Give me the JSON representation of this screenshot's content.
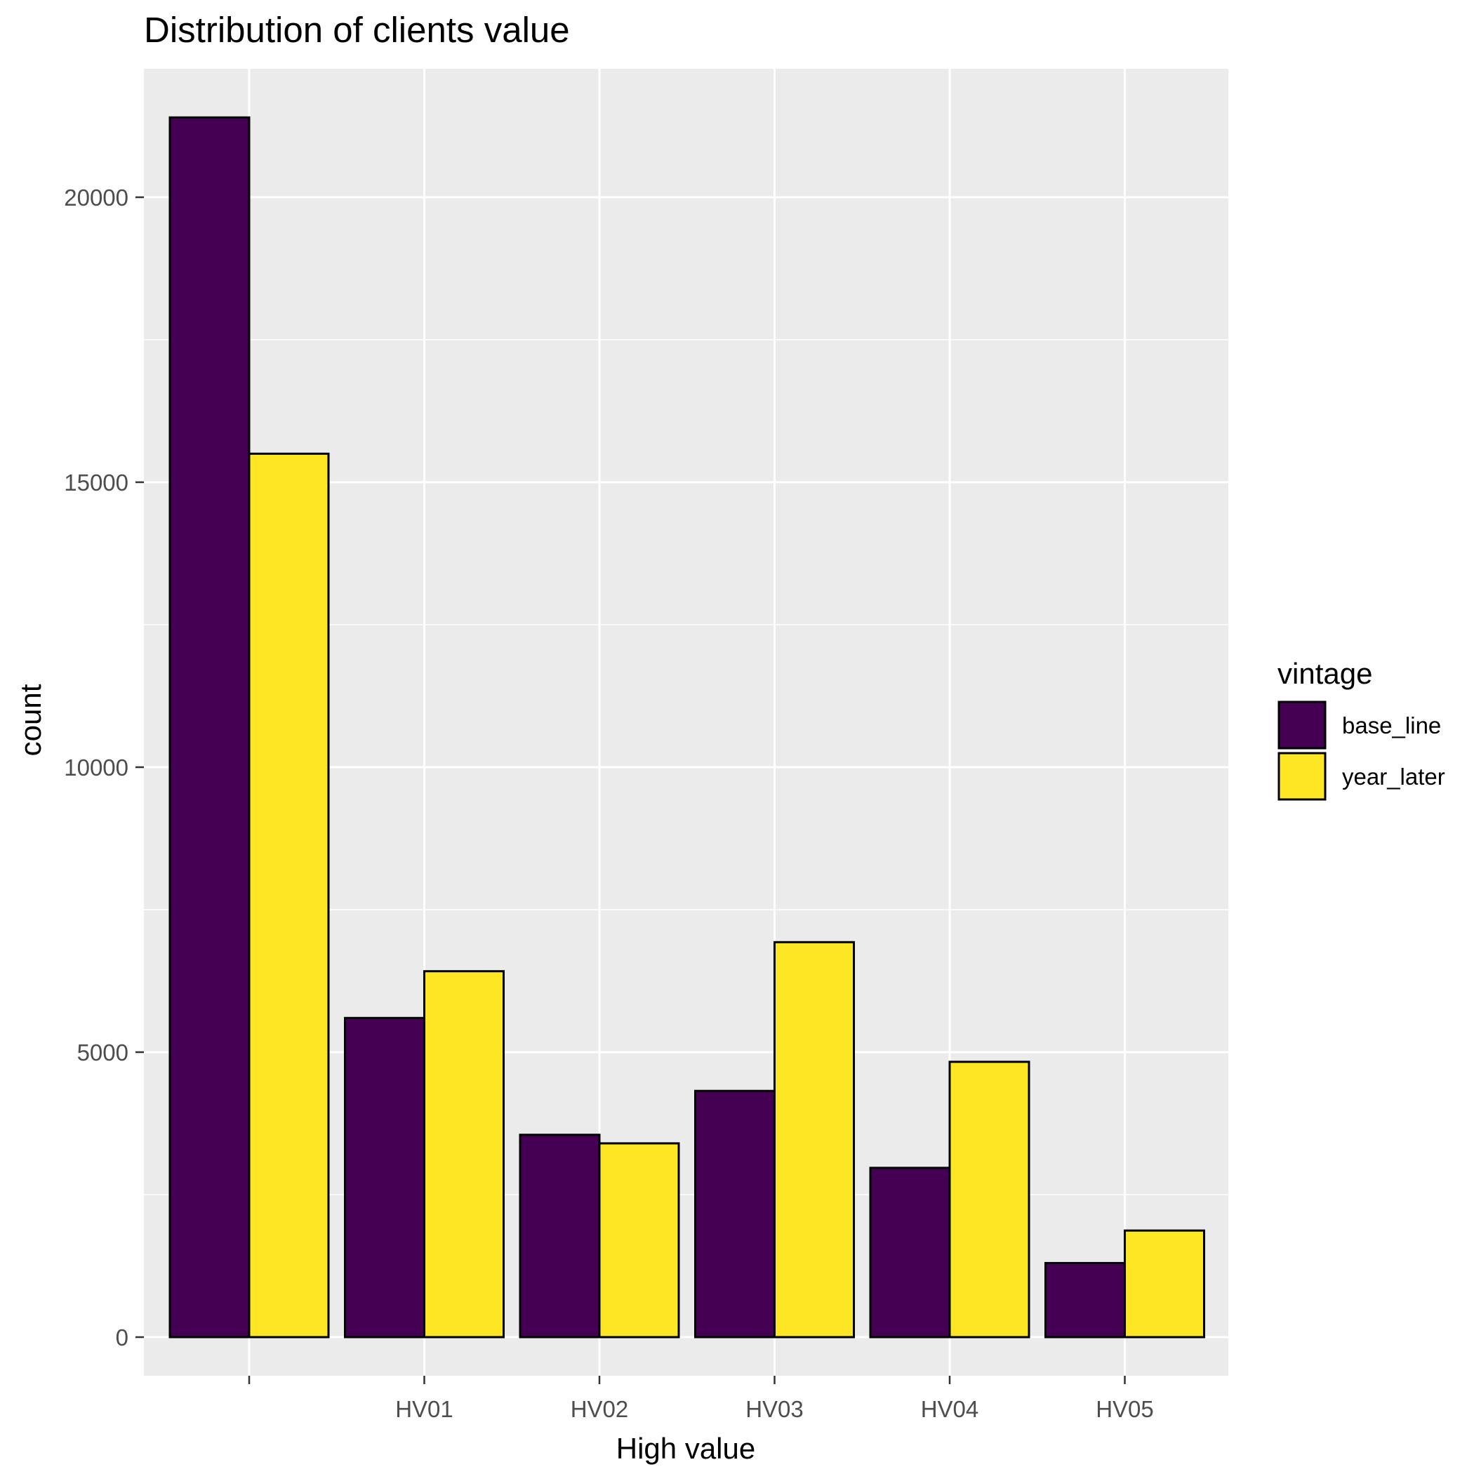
{
  "chart_data": {
    "type": "bar",
    "title": "Distribution of clients value",
    "xlabel": "High value",
    "ylabel": "count",
    "categories": [
      "",
      "HV01",
      "HV02",
      "HV03",
      "HV04",
      "HV05"
    ],
    "series": [
      {
        "name": "base_line",
        "color": "#440154",
        "values": [
          21400,
          5600,
          3550,
          4320,
          2970,
          1300
        ]
      },
      {
        "name": "year_later",
        "color": "#fde725",
        "values": [
          15500,
          6420,
          3400,
          6930,
          4830,
          1870
        ]
      }
    ],
    "ylim": [
      -1800,
      22500
    ],
    "yticks": [
      0,
      5000,
      10000,
      15000,
      20000
    ],
    "ytick_labels": [
      "0",
      "5000",
      "10000",
      "15000",
      "20000"
    ],
    "grid": true,
    "legend": {
      "title": "vintage",
      "position": "right"
    }
  }
}
